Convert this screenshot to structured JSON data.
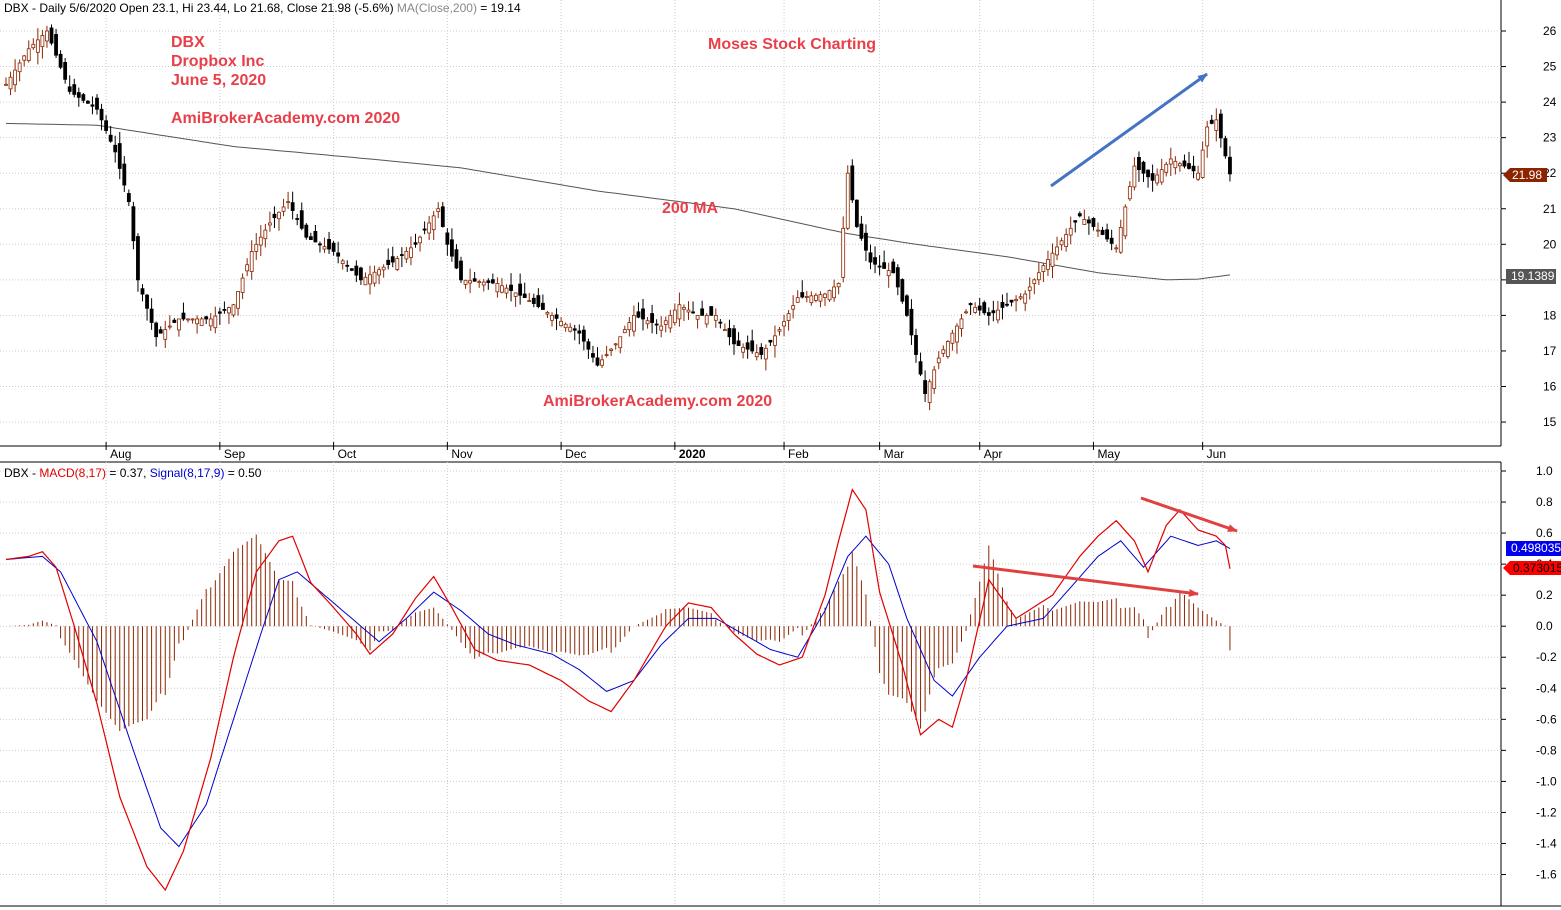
{
  "colors": {
    "up_candle": "#8b2500",
    "down_candle": "#000000",
    "ma_line": "#555555",
    "macd_line": "#e00000",
    "signal_line": "#0000cc",
    "histogram": "#8b2500",
    "annotation_red": "#e8404a",
    "arrow_blue": "#4472c4",
    "arrow_red": "#e04040",
    "last_price_badge": "#8b2500",
    "ma_badge": "#555555",
    "signal_badge": "#0000ee",
    "macd_badge": "#ff0000",
    "grid": "#cccccc"
  },
  "price_panel": {
    "header": "DBX - Daily 5/6/2020 Open 23.1, Hi 23.44, Lo 21.68, Close 21.98 (-5.6%)",
    "header_ma": "MA(Close,200)",
    "header_ma_value": " = 19.14",
    "annotations": {
      "ticker": "DBX",
      "company": "Dropbox Inc",
      "date": "June 5, 2020",
      "site1": "AmiBrokerAcademy.com  2020",
      "charting": "Moses Stock Charting",
      "ma_label": "200 MA",
      "site2": "AmiBrokerAcademy.com  2020"
    },
    "last_price_label": "21.98",
    "ma_value_label": "19.1389",
    "y_ticks": [
      "15",
      "16",
      "17",
      "18",
      "19",
      "20",
      "21",
      "22",
      "23",
      "24",
      "25",
      "26"
    ]
  },
  "macd_panel": {
    "header_ticker": "DBX - ",
    "header_macd": "MACD(8,17)",
    "header_macd_value": " = 0.37, ",
    "header_signal": "Signal(8,17,9)",
    "header_signal_value": " = 0.50",
    "signal_value_label": "0.498035",
    "macd_value_label": "0.373015",
    "y_ticks": [
      "1.0",
      "0.8",
      "0.6",
      "0.4",
      "0.2",
      "0.0",
      "-0.2",
      "-0.4",
      "-0.6",
      "-0.8",
      "-1.0",
      "-1.2",
      "-1.4",
      "-1.6"
    ]
  },
  "x_axis": {
    "months": [
      "Aug",
      "Sep",
      "Oct",
      "Nov",
      "Dec",
      "2020",
      "Feb",
      "Mar",
      "Apr",
      "May",
      "Jun"
    ]
  },
  "chart_data": [
    {
      "type": "candlestick",
      "title": "DBX - Daily 5/6/2020 Open 23.1, Hi 23.44, Lo 21.68, Close 21.98 (-5.6%)",
      "ylim": [
        14.3,
        26.4
      ],
      "months": [
        "Aug",
        "Sep",
        "Oct",
        "Nov",
        "Dec",
        "2020",
        "Feb",
        "Mar",
        "Apr",
        "May",
        "Jun"
      ],
      "close_keypoints": [
        [
          0,
          24.5
        ],
        [
          5,
          25.5
        ],
        [
          9,
          26.0
        ],
        [
          14,
          24.3
        ],
        [
          20,
          23.8
        ],
        [
          24,
          22.6
        ],
        [
          27,
          21.2
        ],
        [
          29,
          19.0
        ],
        [
          33,
          17.4
        ],
        [
          38,
          17.9
        ],
        [
          45,
          17.9
        ],
        [
          50,
          18.3
        ],
        [
          54,
          19.8
        ],
        [
          58,
          20.6
        ],
        [
          62,
          21.2
        ],
        [
          66,
          20.2
        ],
        [
          72,
          19.8
        ],
        [
          78,
          19.0
        ],
        [
          85,
          19.5
        ],
        [
          90,
          20.0
        ],
        [
          95,
          21.0
        ],
        [
          97,
          20.0
        ],
        [
          100,
          19.0
        ],
        [
          108,
          18.9
        ],
        [
          114,
          18.5
        ],
        [
          120,
          18.0
        ],
        [
          126,
          17.5
        ],
        [
          130,
          16.6
        ],
        [
          134,
          17.2
        ],
        [
          138,
          18.0
        ],
        [
          144,
          17.7
        ],
        [
          148,
          18.3
        ],
        [
          152,
          18.0
        ],
        [
          156,
          18.0
        ],
        [
          160,
          17.2
        ],
        [
          166,
          16.9
        ],
        [
          170,
          17.6
        ],
        [
          174,
          18.5
        ],
        [
          180,
          18.6
        ],
        [
          183,
          18.9
        ],
        [
          185,
          22.0
        ],
        [
          187,
          20.5
        ],
        [
          190,
          19.5
        ],
        [
          195,
          19.2
        ],
        [
          198,
          18.0
        ],
        [
          202,
          15.8
        ],
        [
          205,
          16.8
        ],
        [
          208,
          17.5
        ],
        [
          212,
          18.3
        ],
        [
          216,
          18.0
        ],
        [
          220,
          18.3
        ],
        [
          224,
          18.6
        ],
        [
          228,
          19.4
        ],
        [
          232,
          20.1
        ],
        [
          236,
          20.8
        ],
        [
          240,
          20.4
        ],
        [
          244,
          19.9
        ],
        [
          248,
          22.2
        ],
        [
          252,
          21.8
        ],
        [
          256,
          22.4
        ],
        [
          262,
          22.0
        ],
        [
          264,
          23.3
        ],
        [
          266,
          23.5
        ],
        [
          269,
          21.98
        ]
      ],
      "ma_200_keypoints": [
        [
          0,
          23.4
        ],
        [
          20,
          23.35
        ],
        [
          50,
          22.75
        ],
        [
          80,
          22.4
        ],
        [
          100,
          22.15
        ],
        [
          130,
          21.5
        ],
        [
          160,
          21.0
        ],
        [
          185,
          20.3
        ],
        [
          200,
          20.0
        ],
        [
          220,
          19.65
        ],
        [
          240,
          19.2
        ],
        [
          255,
          19.0
        ],
        [
          262,
          19.02
        ],
        [
          269,
          19.14
        ]
      ],
      "last_close": 21.98,
      "ma_last": 19.1389
    },
    {
      "type": "line",
      "title": "DBX - MACD(8,17) = 0.37, Signal(8,17,9) = 0.50",
      "ylim": [
        -1.78,
        1.02
      ],
      "series": [
        {
          "name": "MACD(8,17)",
          "values": [
            [
              0,
              0.43
            ],
            [
              5,
              0.45
            ],
            [
              8,
              0.48
            ],
            [
              11,
              0.38
            ],
            [
              15,
              0.0
            ],
            [
              20,
              -0.5
            ],
            [
              25,
              -1.1
            ],
            [
              31,
              -1.55
            ],
            [
              35,
              -1.7
            ],
            [
              39,
              -1.45
            ],
            [
              45,
              -0.85
            ],
            [
              50,
              -0.2
            ],
            [
              55,
              0.35
            ],
            [
              60,
              0.55
            ],
            [
              63,
              0.58
            ],
            [
              67,
              0.28
            ],
            [
              72,
              0.12
            ],
            [
              77,
              -0.05
            ],
            [
              80,
              -0.18
            ],
            [
              85,
              -0.05
            ],
            [
              90,
              0.18
            ],
            [
              94,
              0.32
            ],
            [
              98,
              0.12
            ],
            [
              103,
              -0.15
            ],
            [
              108,
              -0.22
            ],
            [
              115,
              -0.25
            ],
            [
              122,
              -0.35
            ],
            [
              128,
              -0.48
            ],
            [
              133,
              -0.55
            ],
            [
              138,
              -0.35
            ],
            [
              145,
              0.0
            ],
            [
              150,
              0.15
            ],
            [
              155,
              0.12
            ],
            [
              160,
              -0.05
            ],
            [
              165,
              -0.18
            ],
            [
              170,
              -0.25
            ],
            [
              175,
              -0.2
            ],
            [
              180,
              0.2
            ],
            [
              183,
              0.55
            ],
            [
              186,
              0.88
            ],
            [
              189,
              0.75
            ],
            [
              192,
              0.22
            ],
            [
              197,
              -0.25
            ],
            [
              201,
              -0.7
            ],
            [
              205,
              -0.6
            ],
            [
              208,
              -0.65
            ],
            [
              211,
              -0.35
            ],
            [
              216,
              0.3
            ],
            [
              222,
              0.05
            ],
            [
              230,
              0.2
            ],
            [
              236,
              0.45
            ],
            [
              240,
              0.58
            ],
            [
              244,
              0.68
            ],
            [
              248,
              0.55
            ],
            [
              251,
              0.35
            ],
            [
              255,
              0.65
            ],
            [
              258,
              0.75
            ],
            [
              262,
              0.62
            ],
            [
              266,
              0.58
            ],
            [
              268,
              0.52
            ],
            [
              269,
              0.37
            ]
          ]
        },
        {
          "name": "Signal(8,17,9)",
          "values": [
            [
              0,
              0.43
            ],
            [
              8,
              0.45
            ],
            [
              12,
              0.35
            ],
            [
              20,
              -0.1
            ],
            [
              28,
              -0.8
            ],
            [
              34,
              -1.3
            ],
            [
              38,
              -1.42
            ],
            [
              44,
              -1.15
            ],
            [
              50,
              -0.6
            ],
            [
              56,
              -0.05
            ],
            [
              60,
              0.3
            ],
            [
              64,
              0.35
            ],
            [
              70,
              0.2
            ],
            [
              76,
              0.05
            ],
            [
              82,
              -0.1
            ],
            [
              88,
              0.05
            ],
            [
              94,
              0.22
            ],
            [
              100,
              0.1
            ],
            [
              106,
              -0.05
            ],
            [
              112,
              -0.12
            ],
            [
              120,
              -0.18
            ],
            [
              126,
              -0.28
            ],
            [
              132,
              -0.42
            ],
            [
              138,
              -0.35
            ],
            [
              144,
              -0.12
            ],
            [
              150,
              0.05
            ],
            [
              156,
              0.05
            ],
            [
              162,
              -0.05
            ],
            [
              168,
              -0.15
            ],
            [
              174,
              -0.2
            ],
            [
              180,
              0.1
            ],
            [
              185,
              0.45
            ],
            [
              189,
              0.58
            ],
            [
              194,
              0.4
            ],
            [
              198,
              0.05
            ],
            [
              204,
              -0.35
            ],
            [
              208,
              -0.45
            ],
            [
              214,
              -0.2
            ],
            [
              220,
              0.0
            ],
            [
              228,
              0.05
            ],
            [
              234,
              0.25
            ],
            [
              240,
              0.45
            ],
            [
              245,
              0.55
            ],
            [
              250,
              0.38
            ],
            [
              256,
              0.58
            ],
            [
              262,
              0.52
            ],
            [
              266,
              0.55
            ],
            [
              269,
              0.5
            ]
          ]
        }
      ]
    }
  ]
}
